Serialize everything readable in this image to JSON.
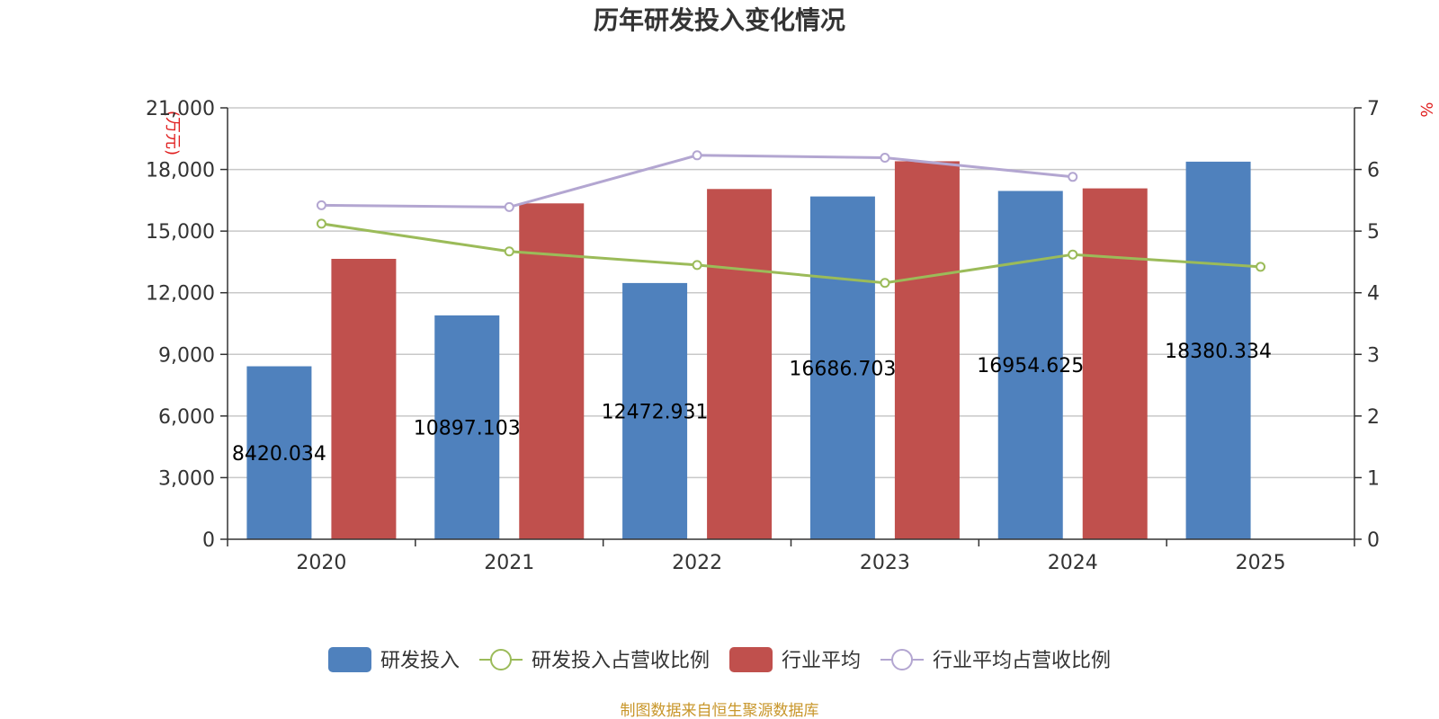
{
  "chart_data": {
    "type": "bar",
    "title": "历年研发投入变化情况",
    "categories": [
      "2020",
      "2021",
      "2022",
      "2023",
      "2024",
      "2025"
    ],
    "y_left": {
      "unit_label": "(万元)",
      "min": 0,
      "max": 21000,
      "ticks": [
        0,
        3000,
        6000,
        9000,
        12000,
        15000,
        18000,
        21000
      ],
      "tick_labels": [
        "0",
        "3,000",
        "6,000",
        "9,000",
        "12,000",
        "15,000",
        "18,000",
        "21,000"
      ]
    },
    "y_right": {
      "unit_label": "%",
      "min": 0,
      "max": 7,
      "ticks": [
        0,
        1,
        2,
        3,
        4,
        5,
        6,
        7
      ],
      "tick_labels": [
        "0",
        "1",
        "2",
        "3",
        "4",
        "5",
        "6",
        "7"
      ]
    },
    "series": [
      {
        "name": "研发投入",
        "kind": "bar",
        "axis": "left",
        "color": "#4f81bd",
        "values": [
          8420.034,
          10897.103,
          12472.931,
          16686.703,
          16954.625,
          18380.334
        ],
        "data_labels": [
          "8420.034",
          "10897.103",
          "12472.931",
          "16686.703",
          "16954.625",
          "18380.334"
        ]
      },
      {
        "name": "研发投入占营收比例",
        "kind": "line",
        "axis": "right",
        "color": "#9bbb59",
        "values": [
          5.12,
          4.67,
          4.45,
          4.16,
          4.62,
          4.42
        ]
      },
      {
        "name": "行业平均",
        "kind": "bar",
        "axis": "left",
        "color": "#c0504d",
        "values": [
          13650,
          16350,
          17050,
          18400,
          17080,
          null
        ]
      },
      {
        "name": "行业平均占营收比例",
        "kind": "line",
        "axis": "right",
        "color": "#b3a6d1",
        "values": [
          5.42,
          5.39,
          6.23,
          6.19,
          5.88,
          null
        ]
      }
    ],
    "legend_position": "bottom-center",
    "grid": true
  },
  "footer": {
    "source": "制图数据来自恒生聚源数据库"
  }
}
